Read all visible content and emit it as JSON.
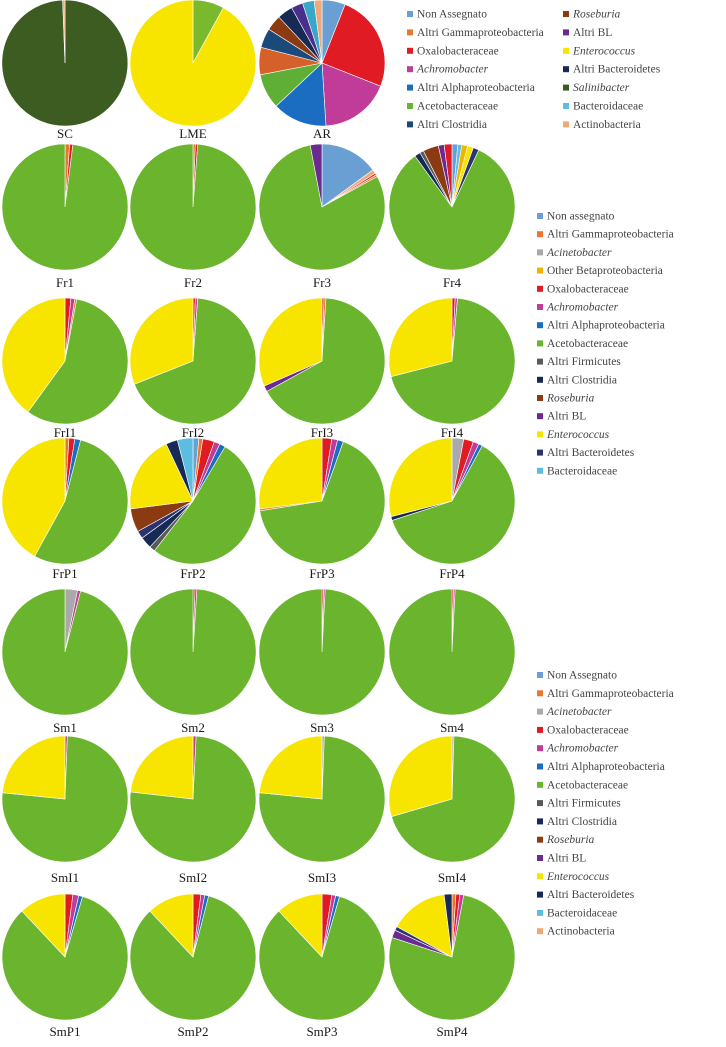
{
  "chart_data": {
    "type": "pie",
    "colors": {
      "non_assegnato": "#6a9fd4",
      "altri_gamma": "#e8782c",
      "acinetobacter": "#a9a9a9",
      "other_beta": "#f0b400",
      "oxalo": "#e01b24",
      "achromo": "#c13b98",
      "altri_alpha": "#1a6dc0",
      "acetobact": "#6ab42e",
      "altri_firmicutes": "#5a5a5a",
      "altri_clostridia": "#162a55",
      "roseburia": "#8b3a12",
      "altri_bl": "#6b2a90",
      "enterococcus": "#f7e500",
      "altri_bacteroidetes": "#2c3470",
      "bacteroidaceae": "#5bbde0",
      "actinobacteria": "#f0a878",
      "salinibacter": "#3d5c22",
      "lme_green": "#7ab82e",
      "ar_green": "#5fae35",
      "ar_orange": "#d6602a",
      "ar_dkblue": "#1b4a7a",
      "ar_purple": "#4a2e8c",
      "ar_teal": "#3aa7c9"
    },
    "legends": [
      {
        "name": "legend-top",
        "columns": [
          [
            {
              "label": "Non Assegnato",
              "color": "non_assegnato",
              "italic": false
            },
            {
              "label": "Altri Gammaproteobacteria",
              "color": "altri_gamma",
              "italic": false
            },
            {
              "label": "Oxalobacteraceae",
              "color": "oxalo",
              "italic": false
            },
            {
              "label": "Achromobacter",
              "color": "achromo",
              "italic": true
            },
            {
              "label": "Altri Alphaproteobacteria",
              "color": "altri_alpha",
              "italic": false
            },
            {
              "label": "Acetobacteraceae",
              "color": "acetobact",
              "italic": false
            },
            {
              "label": "Altri Clostridia",
              "color": "ar_dkblue",
              "italic": false
            }
          ],
          [
            {
              "label": "Roseburia",
              "color": "roseburia",
              "italic": true
            },
            {
              "label": "Altri BL",
              "color": "altri_bl",
              "italic": false
            },
            {
              "label": "Enterococcus",
              "color": "enterococcus",
              "italic": true
            },
            {
              "label": "Altri Bacteroidetes",
              "color": "altri_clostridia",
              "italic": false
            },
            {
              "label": "Salinibacter",
              "color": "salinibacter",
              "italic": true
            },
            {
              "label": "Bacteroidaceae",
              "color": "bacteroidaceae",
              "italic": false
            },
            {
              "label": "Actinobacteria",
              "color": "actinobacteria",
              "italic": false
            }
          ]
        ]
      },
      {
        "name": "legend-middle",
        "columns": [
          [
            {
              "label": "Non assegnato",
              "color": "non_assegnato",
              "italic": false
            },
            {
              "label": "Altri Gammaproteobacteria",
              "color": "altri_gamma",
              "italic": false
            },
            {
              "label": "Acinetobacter",
              "color": "acinetobacter",
              "italic": true
            },
            {
              "label": "Other Betaproteobacteria",
              "color": "other_beta",
              "italic": false
            },
            {
              "label": "Oxalobacteraceae",
              "color": "oxalo",
              "italic": false
            },
            {
              "label": "Achromobacter",
              "color": "achromo",
              "italic": true
            },
            {
              "label": "Altri Alphaproteobacteria",
              "color": "altri_alpha",
              "italic": false
            },
            {
              "label": "Acetobacteraceae",
              "color": "acetobact",
              "italic": false
            },
            {
              "label": "Altri Firmicutes",
              "color": "altri_firmicutes",
              "italic": false
            },
            {
              "label": "Altri Clostridia",
              "color": "altri_clostridia",
              "italic": false
            },
            {
              "label": "Roseburia",
              "color": "roseburia",
              "italic": true
            },
            {
              "label": "Altri BL",
              "color": "altri_bl",
              "italic": false
            },
            {
              "label": "Enterococcus",
              "color": "enterococcus",
              "italic": true
            },
            {
              "label": "Altri Bacteroidetes",
              "color": "altri_bacteroidetes",
              "italic": false
            },
            {
              "label": "Bacteroidaceae",
              "color": "bacteroidaceae",
              "italic": false
            }
          ]
        ]
      },
      {
        "name": "legend-bottom",
        "columns": [
          [
            {
              "label": "Non Assegnato",
              "color": "non_assegnato",
              "italic": false
            },
            {
              "label": "Altri Gammaproteobacteria",
              "color": "altri_gamma",
              "italic": false
            },
            {
              "label": "Acinetobacter",
              "color": "acinetobacter",
              "italic": true
            },
            {
              "label": "Oxalobacteraceae",
              "color": "oxalo",
              "italic": false
            },
            {
              "label": "Achromobacter",
              "color": "achromo",
              "italic": true
            },
            {
              "label": "Altri Alphaproteobacteria",
              "color": "altri_alpha",
              "italic": false
            },
            {
              "label": "Acetobacteraceae",
              "color": "acetobact",
              "italic": false
            },
            {
              "label": "Altri Firmicutes",
              "color": "altri_firmicutes",
              "italic": false
            },
            {
              "label": "Altri Clostridia",
              "color": "altri_clostridia",
              "italic": false
            },
            {
              "label": "Roseburia",
              "color": "roseburia",
              "italic": true
            },
            {
              "label": "Altri BL",
              "color": "altri_bl",
              "italic": false
            },
            {
              "label": "Enterococcus",
              "color": "enterococcus",
              "italic": true
            },
            {
              "label": "Altri  Bacteroidetes",
              "color": "altri_clostridia",
              "italic": false
            },
            {
              "label": "Bacteroidaceae",
              "color": "bacteroidaceae",
              "italic": false
            },
            {
              "label": "Actinobacteria",
              "color": "actinobacteria",
              "italic": false
            }
          ]
        ]
      }
    ],
    "pies": [
      {
        "label": "SC",
        "slices": [
          [
            "salinibacter",
            99.4
          ],
          [
            "actinobacteria",
            0.6
          ]
        ]
      },
      {
        "label": "LME",
        "slices": [
          [
            "lme_green",
            8
          ],
          [
            "enterococcus",
            92
          ]
        ]
      },
      {
        "label": "AR",
        "slices": [
          [
            "non_assegnato",
            6
          ],
          [
            "oxalo",
            25
          ],
          [
            "achromo",
            18
          ],
          [
            "altri_alpha",
            14
          ],
          [
            "ar_green",
            9
          ],
          [
            "ar_orange",
            7
          ],
          [
            "ar_dkblue",
            5
          ],
          [
            "roseburia",
            4
          ],
          [
            "altri_clostridia",
            4
          ],
          [
            "ar_purple",
            3
          ],
          [
            "ar_teal",
            3
          ],
          [
            "actinobacteria",
            2
          ]
        ]
      },
      {
        "label": "Fr1",
        "slices": [
          [
            "altri_gamma",
            1.2
          ],
          [
            "oxalo",
            0.8
          ],
          [
            "acetobact",
            98
          ]
        ]
      },
      {
        "label": "Fr2",
        "slices": [
          [
            "altri_gamma",
            0.6
          ],
          [
            "oxalo",
            0.6
          ],
          [
            "acetobact",
            98.8
          ]
        ]
      },
      {
        "label": "Fr3",
        "slices": [
          [
            "non_assegnato",
            15
          ],
          [
            "actinobacteria",
            1
          ],
          [
            "oxalo",
            0.5
          ],
          [
            "altri_gamma",
            0.5
          ],
          [
            "acetobact",
            80
          ],
          [
            "altri_bl",
            3
          ]
        ]
      },
      {
        "label": "Fr4",
        "slices": [
          [
            "non_assegnato",
            1.5
          ],
          [
            "bacteroidaceae",
            1
          ],
          [
            "other_beta",
            1.5
          ],
          [
            "enterococcus",
            1.5
          ],
          [
            "altri_bacteroidetes",
            1.5
          ],
          [
            "acetobact",
            83
          ],
          [
            "altri_clostridia",
            1.5
          ],
          [
            "altri_firmicutes",
            1
          ],
          [
            "roseburia",
            4
          ],
          [
            "altri_bl",
            1.5
          ],
          [
            "oxalo",
            2
          ]
        ]
      },
      {
        "label": "FrI1",
        "slices": [
          [
            "oxalo",
            1.5
          ],
          [
            "achromo",
            1
          ],
          [
            "altri_gamma",
            0.5
          ],
          [
            "acetobact",
            57
          ],
          [
            "enterococcus",
            40
          ]
        ]
      },
      {
        "label": "FrI2",
        "slices": [
          [
            "oxalo",
            0.6
          ],
          [
            "achromo",
            0.6
          ],
          [
            "acetobact",
            67.8
          ],
          [
            "enterococcus",
            31
          ]
        ]
      },
      {
        "label": "FrI3",
        "slices": [
          [
            "oxalo",
            0.5
          ],
          [
            "altri_gamma",
            0.5
          ],
          [
            "acetobact",
            66
          ],
          [
            "altri_bl",
            1.5
          ],
          [
            "enterococcus",
            31.5
          ]
        ]
      },
      {
        "label": "FrI4",
        "slices": [
          [
            "oxalo",
            0.8
          ],
          [
            "achromo",
            0.6
          ],
          [
            "acetobact",
            69.6
          ],
          [
            "enterococcus",
            29
          ]
        ]
      },
      {
        "label": "FrP1",
        "slices": [
          [
            "altri_gamma",
            1
          ],
          [
            "oxalo",
            1.5
          ],
          [
            "altri_alpha",
            1.5
          ],
          [
            "acetobact",
            54
          ],
          [
            "enterococcus",
            42
          ]
        ]
      },
      {
        "label": "FrP2",
        "slices": [
          [
            "non_assegnato",
            1.5
          ],
          [
            "altri_gamma",
            1
          ],
          [
            "oxalo",
            3
          ],
          [
            "achromo",
            1.5
          ],
          [
            "altri_alpha",
            1.5
          ],
          [
            "acetobact",
            52
          ],
          [
            "altri_firmicutes",
            1.5
          ],
          [
            "altri_clostridia",
            3
          ],
          [
            "altri_bacteroidetes",
            2
          ],
          [
            "roseburia",
            6
          ],
          [
            "enterococcus",
            20
          ],
          [
            "altri_clostridia",
            3
          ],
          [
            "bacteroidaceae",
            4
          ]
        ]
      },
      {
        "label": "FrP3",
        "slices": [
          [
            "oxalo",
            2.5
          ],
          [
            "achromo",
            1.5
          ],
          [
            "altri_alpha",
            1.5
          ],
          [
            "acetobact",
            67
          ],
          [
            "altri_gamma",
            0.5
          ],
          [
            "enterococcus",
            27
          ]
        ]
      },
      {
        "label": "FrP4",
        "slices": [
          [
            "acinetobacter",
            3
          ],
          [
            "oxalo",
            2.5
          ],
          [
            "achromo",
            1.5
          ],
          [
            "altri_alpha",
            1
          ],
          [
            "acetobact",
            62
          ],
          [
            "altri_clostridia",
            1
          ],
          [
            "enterococcus",
            29
          ]
        ]
      },
      {
        "label": "Sm1",
        "slices": [
          [
            "acinetobacter",
            3.2
          ],
          [
            "achromo",
            0.8
          ],
          [
            "acetobact",
            96
          ]
        ]
      },
      {
        "label": "Sm2",
        "slices": [
          [
            "oxalo",
            0.5
          ],
          [
            "achromo",
            0.5
          ],
          [
            "acetobact",
            99
          ]
        ]
      },
      {
        "label": "Sm3",
        "slices": [
          [
            "oxalo",
            0.4
          ],
          [
            "achromo",
            0.4
          ],
          [
            "acetobact",
            99.2
          ]
        ]
      },
      {
        "label": "Sm4",
        "slices": [
          [
            "oxalo",
            0.4
          ],
          [
            "achromo",
            0.4
          ],
          [
            "acetobact",
            99.2
          ]
        ]
      },
      {
        "label": "SmI1",
        "slices": [
          [
            "achromo",
            0.6
          ],
          [
            "acetobact",
            76
          ],
          [
            "enterococcus",
            23.4
          ]
        ]
      },
      {
        "label": "SmI2",
        "slices": [
          [
            "achromo",
            0.8
          ],
          [
            "acetobact",
            76
          ],
          [
            "enterococcus",
            23.2
          ]
        ]
      },
      {
        "label": "SmI3",
        "slices": [
          [
            "acinetobacter",
            0.6
          ],
          [
            "acetobact",
            76
          ],
          [
            "enterococcus",
            23.4
          ]
        ]
      },
      {
        "label": "SmI4",
        "slices": [
          [
            "acinetobacter",
            0.5
          ],
          [
            "acetobact",
            70
          ],
          [
            "enterococcus",
            29.5
          ]
        ]
      },
      {
        "label": "SmP1",
        "slices": [
          [
            "oxalo",
            2
          ],
          [
            "achromo",
            1.5
          ],
          [
            "altri_alpha",
            1
          ],
          [
            "acetobact",
            83.5
          ],
          [
            "enterococcus",
            12
          ]
        ]
      },
      {
        "label": "SmP2",
        "slices": [
          [
            "oxalo",
            2
          ],
          [
            "achromo",
            1
          ],
          [
            "altri_alpha",
            1
          ],
          [
            "acetobact",
            84
          ],
          [
            "enterococcus",
            12
          ]
        ]
      },
      {
        "label": "SmP3",
        "slices": [
          [
            "oxalo",
            2.5
          ],
          [
            "achromo",
            1
          ],
          [
            "altri_alpha",
            1
          ],
          [
            "acetobact",
            83.5
          ],
          [
            "enterococcus",
            12
          ]
        ]
      },
      {
        "label": "SmP4",
        "slices": [
          [
            "altri_gamma",
            1
          ],
          [
            "oxalo",
            1
          ],
          [
            "achromo",
            1
          ],
          [
            "acetobact",
            77
          ],
          [
            "altri_bl",
            2
          ],
          [
            "altri_bacteroidetes",
            1
          ],
          [
            "enterococcus",
            15
          ],
          [
            "altri_clostridia",
            2
          ]
        ]
      }
    ]
  }
}
